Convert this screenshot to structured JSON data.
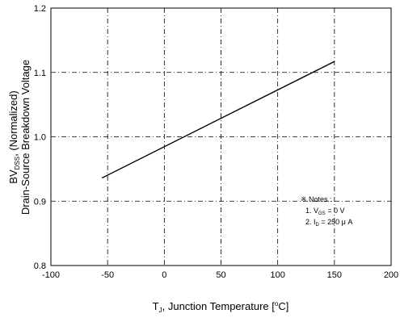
{
  "chart_data": {
    "type": "line",
    "xlim": [
      -100,
      200
    ],
    "ylim": [
      0.8,
      1.2
    ],
    "x_ticks": [
      "-100",
      "-50",
      "0",
      "50",
      "100",
      "150",
      "200"
    ],
    "y_ticks": [
      "0.8",
      "0.9",
      "1.0",
      "1.1",
      "1.2"
    ],
    "grid": true,
    "x": [
      -55,
      150
    ],
    "y": [
      0.936,
      1.117
    ],
    "xlabel": {
      "main": "T",
      "sub": "J",
      "rest": ", Junction Temperature [",
      "degree": "o",
      "unit": "C]"
    },
    "ylabel": {
      "line1_main": "BV",
      "line1_sub": "DSS",
      "line1_rest": ", (Normalized)",
      "line2": "Drain-Source Breakdown Voltage"
    },
    "notes": {
      "title": "※ Notes :",
      "n1_prefix": "1. V",
      "n1_sub": "GS",
      "n1_rest": " = 0 V",
      "n2_prefix": "2. I",
      "n2_sub": "D",
      "n2_rest": " = 250 μ A"
    }
  },
  "colors": {
    "line": "#000000",
    "grid": "#000000",
    "background": "#ffffff"
  }
}
